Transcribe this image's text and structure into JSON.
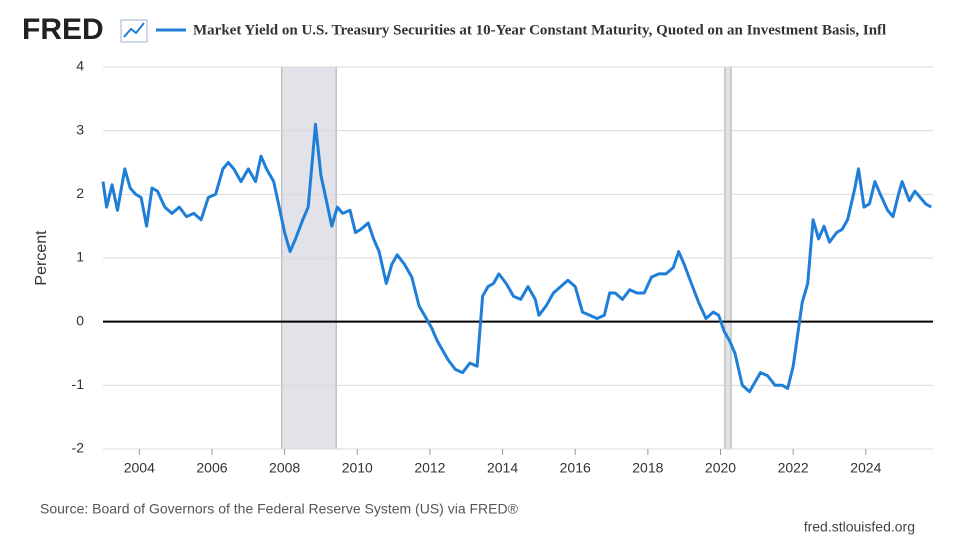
{
  "logo": "FRED",
  "chart_data": {
    "type": "line",
    "y_label": "Percent",
    "source": "Source: Board of Governors of the Federal Reserve System (US) via FRED®",
    "credit": "fred.stlouisfed.org",
    "x": [
      2003.0,
      2003.1,
      2003.25,
      2003.4,
      2003.6,
      2003.75,
      2003.9,
      2004.05,
      2004.2,
      2004.35,
      2004.5,
      2004.7,
      2004.9,
      2005.1,
      2005.3,
      2005.5,
      2005.7,
      2005.9,
      2006.1,
      2006.3,
      2006.45,
      2006.6,
      2006.8,
      2007.0,
      2007.2,
      2007.35,
      2007.5,
      2007.7,
      2007.85,
      2008.0,
      2008.15,
      2008.3,
      2008.5,
      2008.65,
      2008.85,
      2009.0,
      2009.15,
      2009.3,
      2009.45,
      2009.6,
      2009.8,
      2009.95,
      2010.1,
      2010.3,
      2010.45,
      2010.6,
      2010.8,
      2010.95,
      2011.1,
      2011.3,
      2011.5,
      2011.7,
      2011.9,
      2012.05,
      2012.2,
      2012.35,
      2012.5,
      2012.7,
      2012.9,
      2013.1,
      2013.3,
      2013.45,
      2013.6,
      2013.75,
      2013.9,
      2014.1,
      2014.3,
      2014.5,
      2014.7,
      2014.9,
      2015.0,
      2015.2,
      2015.4,
      2015.6,
      2015.8,
      2016.0,
      2016.2,
      2016.4,
      2016.6,
      2016.8,
      2016.95,
      2017.1,
      2017.3,
      2017.5,
      2017.7,
      2017.9,
      2018.1,
      2018.3,
      2018.5,
      2018.7,
      2018.85,
      2019.0,
      2019.2,
      2019.4,
      2019.6,
      2019.8,
      2019.95,
      2020.1,
      2020.25,
      2020.4,
      2020.6,
      2020.8,
      2020.95,
      2021.1,
      2021.3,
      2021.5,
      2021.7,
      2021.85,
      2022.0,
      2022.1,
      2022.25,
      2022.4,
      2022.55,
      2022.7,
      2022.85,
      2023.0,
      2023.2,
      2023.35,
      2023.5,
      2023.7,
      2023.8,
      2023.95,
      2024.1,
      2024.25,
      2024.4,
      2024.6,
      2024.75,
      2024.9,
      2025.0,
      2025.2,
      2025.35,
      2025.5,
      2025.65,
      2025.8
    ],
    "series": [
      {
        "name": "Market Yield on U.S. Treasury Securities at 10-Year Constant Maturity, Quoted on an Investment Basis, Infl",
        "color": "#1f7ed8",
        "values": [
          2.2,
          1.8,
          2.15,
          1.75,
          2.4,
          2.1,
          2.0,
          1.95,
          1.5,
          2.1,
          2.05,
          1.8,
          1.7,
          1.8,
          1.65,
          1.7,
          1.6,
          1.95,
          2.0,
          2.4,
          2.5,
          2.4,
          2.2,
          2.4,
          2.2,
          2.6,
          2.4,
          2.2,
          1.8,
          1.4,
          1.1,
          1.3,
          1.6,
          1.8,
          3.1,
          2.3,
          1.9,
          1.5,
          1.8,
          1.7,
          1.75,
          1.4,
          1.45,
          1.55,
          1.3,
          1.1,
          0.6,
          0.9,
          1.05,
          0.9,
          0.7,
          0.25,
          0.05,
          -0.1,
          -0.3,
          -0.45,
          -0.6,
          -0.75,
          -0.8,
          -0.65,
          -0.7,
          0.4,
          0.55,
          0.6,
          0.75,
          0.6,
          0.4,
          0.35,
          0.55,
          0.35,
          0.1,
          0.25,
          0.45,
          0.55,
          0.65,
          0.55,
          0.15,
          0.1,
          0.05,
          0.1,
          0.45,
          0.45,
          0.35,
          0.5,
          0.45,
          0.45,
          0.7,
          0.75,
          0.75,
          0.85,
          1.1,
          0.9,
          0.6,
          0.3,
          0.05,
          0.15,
          0.1,
          -0.15,
          -0.3,
          -0.5,
          -1.0,
          -1.1,
          -0.95,
          -0.8,
          -0.85,
          -1.0,
          -1.0,
          -1.05,
          -0.7,
          -0.3,
          0.3,
          0.6,
          1.6,
          1.3,
          1.5,
          1.25,
          1.4,
          1.45,
          1.6,
          2.1,
          2.4,
          1.8,
          1.85,
          2.2,
          2.0,
          1.75,
          1.65,
          2.0,
          2.2,
          1.9,
          2.05,
          1.95,
          1.85,
          1.8
        ]
      }
    ],
    "shaded_periods": [
      [
        2007.92,
        2009.42
      ],
      [
        2020.12,
        2020.29
      ]
    ],
    "xlim": [
      2003.0,
      2025.85
    ],
    "xticks": [
      2004,
      2006,
      2008,
      2010,
      2012,
      2014,
      2016,
      2018,
      2020,
      2022,
      2024
    ],
    "ylim": [
      -2,
      4
    ],
    "yticks": [
      -2,
      -1,
      0,
      1,
      2,
      3,
      4
    ],
    "grid": true
  }
}
